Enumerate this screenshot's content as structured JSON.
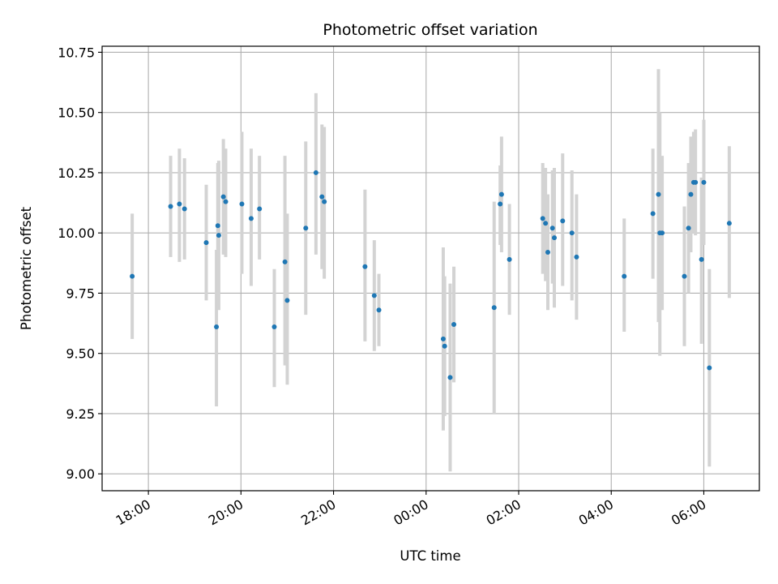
{
  "chart_data": {
    "type": "scatter",
    "title": "Photometric offset variation",
    "xlabel": "UTC time",
    "ylabel": "Photometric offset",
    "grid": true,
    "x_unit": "hours since 00:00 UTC (negative = previous evening)",
    "xlim": [
      -7.0,
      7.2
    ],
    "ylim": [
      8.93,
      10.775
    ],
    "x_ticks": [
      -6,
      -4,
      -2,
      0,
      2,
      4,
      6
    ],
    "x_tick_labels": [
      "18:00",
      "20:00",
      "22:00",
      "00:00",
      "02:00",
      "04:00",
      "06:00"
    ],
    "y_ticks": [
      9.0,
      9.25,
      9.5,
      9.75,
      10.0,
      10.25,
      10.5,
      10.75
    ],
    "y_tick_labels": [
      "9.00",
      "9.25",
      "9.50",
      "9.75",
      "10.00",
      "10.25",
      "10.50",
      "10.75"
    ],
    "marker_color": "#1f77b4",
    "errorbar_color": "#d3d3d3",
    "points": [
      {
        "x": -6.35,
        "y": 9.82,
        "lo": 9.56,
        "hi": 10.08
      },
      {
        "x": -5.52,
        "y": 10.11,
        "lo": 9.9,
        "hi": 10.32
      },
      {
        "x": -5.33,
        "y": 10.12,
        "lo": 9.88,
        "hi": 10.35
      },
      {
        "x": -5.22,
        "y": 10.1,
        "lo": 9.89,
        "hi": 10.31
      },
      {
        "x": -4.75,
        "y": 9.96,
        "lo": 9.72,
        "hi": 10.2
      },
      {
        "x": -4.53,
        "y": 9.61,
        "lo": 9.28,
        "hi": 9.93
      },
      {
        "x": -4.5,
        "y": 10.03,
        "lo": 9.77,
        "hi": 10.29
      },
      {
        "x": -4.48,
        "y": 9.99,
        "lo": 9.68,
        "hi": 10.3
      },
      {
        "x": -4.38,
        "y": 10.15,
        "lo": 9.91,
        "hi": 10.39
      },
      {
        "x": -4.33,
        "y": 10.13,
        "lo": 9.9,
        "hi": 10.35
      },
      {
        "x": -3.98,
        "y": 10.12,
        "lo": 9.83,
        "hi": 10.42
      },
      {
        "x": -3.78,
        "y": 10.06,
        "lo": 9.78,
        "hi": 10.35
      },
      {
        "x": -3.6,
        "y": 10.1,
        "lo": 9.89,
        "hi": 10.32
      },
      {
        "x": -3.28,
        "y": 9.61,
        "lo": 9.36,
        "hi": 9.85
      },
      {
        "x": -3.05,
        "y": 9.88,
        "lo": 9.45,
        "hi": 10.32
      },
      {
        "x": -3.0,
        "y": 9.72,
        "lo": 9.37,
        "hi": 10.08
      },
      {
        "x": -2.6,
        "y": 10.02,
        "lo": 9.66,
        "hi": 10.38
      },
      {
        "x": -2.38,
        "y": 10.25,
        "lo": 9.91,
        "hi": 10.58
      },
      {
        "x": -2.25,
        "y": 10.15,
        "lo": 9.85,
        "hi": 10.45
      },
      {
        "x": -2.2,
        "y": 10.13,
        "lo": 9.81,
        "hi": 10.44
      },
      {
        "x": -1.32,
        "y": 9.86,
        "lo": 9.55,
        "hi": 10.18
      },
      {
        "x": -1.12,
        "y": 9.74,
        "lo": 9.51,
        "hi": 9.97
      },
      {
        "x": -1.02,
        "y": 9.68,
        "lo": 9.53,
        "hi": 9.83
      },
      {
        "x": 0.37,
        "y": 9.56,
        "lo": 9.18,
        "hi": 9.94
      },
      {
        "x": 0.4,
        "y": 9.53,
        "lo": 9.24,
        "hi": 9.82
      },
      {
        "x": 0.52,
        "y": 9.4,
        "lo": 9.01,
        "hi": 9.79
      },
      {
        "x": 0.6,
        "y": 9.62,
        "lo": 9.38,
        "hi": 9.86
      },
      {
        "x": 1.47,
        "y": 9.69,
        "lo": 9.25,
        "hi": 10.13
      },
      {
        "x": 1.6,
        "y": 10.12,
        "lo": 9.95,
        "hi": 10.28
      },
      {
        "x": 1.63,
        "y": 10.16,
        "lo": 9.92,
        "hi": 10.4
      },
      {
        "x": 1.8,
        "y": 9.89,
        "lo": 9.66,
        "hi": 10.12
      },
      {
        "x": 2.52,
        "y": 10.06,
        "lo": 9.83,
        "hi": 10.29
      },
      {
        "x": 2.58,
        "y": 10.04,
        "lo": 9.8,
        "hi": 10.27
      },
      {
        "x": 2.63,
        "y": 9.92,
        "lo": 9.68,
        "hi": 10.16
      },
      {
        "x": 2.73,
        "y": 10.02,
        "lo": 9.79,
        "hi": 10.26
      },
      {
        "x": 2.77,
        "y": 9.98,
        "lo": 9.69,
        "hi": 10.27
      },
      {
        "x": 2.95,
        "y": 10.05,
        "lo": 9.78,
        "hi": 10.33
      },
      {
        "x": 3.15,
        "y": 10.0,
        "lo": 9.72,
        "hi": 10.26
      },
      {
        "x": 3.25,
        "y": 9.9,
        "lo": 9.64,
        "hi": 10.16
      },
      {
        "x": 4.28,
        "y": 9.82,
        "lo": 9.59,
        "hi": 10.06
      },
      {
        "x": 4.9,
        "y": 10.08,
        "lo": 9.81,
        "hi": 10.35
      },
      {
        "x": 5.02,
        "y": 10.16,
        "lo": 9.63,
        "hi": 10.68
      },
      {
        "x": 5.05,
        "y": 10.0,
        "lo": 9.49,
        "hi": 10.5
      },
      {
        "x": 5.1,
        "y": 10.0,
        "lo": 9.68,
        "hi": 10.32
      },
      {
        "x": 5.58,
        "y": 9.82,
        "lo": 9.53,
        "hi": 10.11
      },
      {
        "x": 5.67,
        "y": 10.02,
        "lo": 9.75,
        "hi": 10.29
      },
      {
        "x": 5.72,
        "y": 10.16,
        "lo": 9.92,
        "hi": 10.4
      },
      {
        "x": 5.78,
        "y": 10.21,
        "lo": 10.0,
        "hi": 10.42
      },
      {
        "x": 5.82,
        "y": 10.21,
        "lo": 9.99,
        "hi": 10.43
      },
      {
        "x": 5.95,
        "y": 9.89,
        "lo": 9.54,
        "hi": 10.23
      },
      {
        "x": 6.0,
        "y": 10.21,
        "lo": 9.95,
        "hi": 10.47
      },
      {
        "x": 6.12,
        "y": 9.44,
        "lo": 9.03,
        "hi": 9.85
      },
      {
        "x": 6.55,
        "y": 10.04,
        "lo": 9.73,
        "hi": 10.36
      }
    ]
  }
}
